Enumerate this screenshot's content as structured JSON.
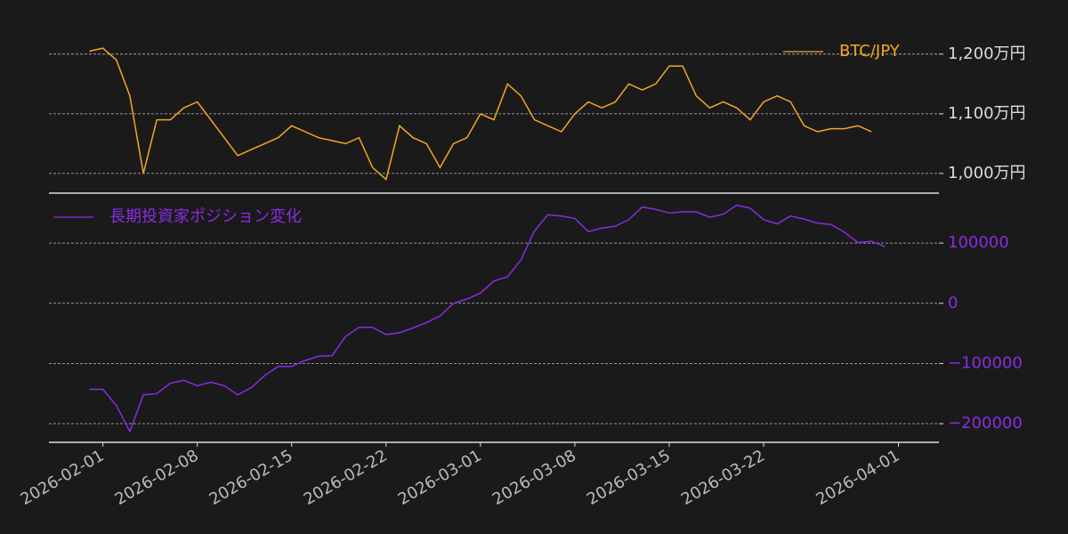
{
  "chart_data": [
    {
      "type": "line",
      "x": [
        "2026-01-31",
        "2026-02-01",
        "2026-02-02",
        "2026-02-03",
        "2026-02-04",
        "2026-02-05",
        "2026-02-06",
        "2026-02-07",
        "2026-02-08",
        "2026-02-09",
        "2026-02-10",
        "2026-02-11",
        "2026-02-12",
        "2026-02-13",
        "2026-02-14",
        "2026-02-15",
        "2026-02-16",
        "2026-02-17",
        "2026-02-18",
        "2026-02-19",
        "2026-02-20",
        "2026-02-21",
        "2026-02-22",
        "2026-02-23",
        "2026-02-24",
        "2026-02-25",
        "2026-02-26",
        "2026-02-27",
        "2026-02-28",
        "2026-03-01",
        "2026-03-02",
        "2026-03-03",
        "2026-03-04",
        "2026-03-05",
        "2026-03-06",
        "2026-03-07",
        "2026-03-08",
        "2026-03-09",
        "2026-03-10",
        "2026-03-11",
        "2026-03-12",
        "2026-03-13",
        "2026-03-14",
        "2026-03-15",
        "2026-03-16",
        "2026-03-17",
        "2026-03-18",
        "2026-03-19",
        "2026-03-20",
        "2026-03-21",
        "2026-03-22",
        "2026-03-23",
        "2026-03-24",
        "2026-03-25",
        "2026-03-26",
        "2026-03-27",
        "2026-03-28",
        "2026-03-29",
        "2026-03-30"
      ],
      "series": [
        {
          "name": "BTC/JPY",
          "color": "#f5a623",
          "values": [
            1205,
            1210,
            1190,
            1130,
            1000,
            1090,
            1090,
            1110,
            1120,
            1090,
            1060,
            1030,
            1040,
            1050,
            1060,
            1080,
            1070,
            1060,
            1055,
            1050,
            1060,
            1010,
            990,
            1080,
            1060,
            1050,
            1010,
            1050,
            1060,
            1100,
            1090,
            1150,
            1130,
            1090,
            1080,
            1070,
            1100,
            1120,
            1110,
            1120,
            1150,
            1140,
            1150,
            1180,
            1180,
            1130,
            1110,
            1120,
            1110,
            1090,
            1120,
            1130,
            1120,
            1080,
            1070,
            1075,
            1075,
            1080,
            1070
          ]
        }
      ],
      "xlim": [
        "2026-01-28",
        "2026-04-04"
      ],
      "ylim": [
        967,
        1246
      ],
      "yticks": [
        {
          "value": 1000,
          "label": "1,000万円"
        },
        {
          "value": 1100,
          "label": "1,100万円"
        },
        {
          "value": 1200,
          "label": "1,200万円"
        }
      ],
      "grid": true,
      "legend": "upper right",
      "tick_color": "#dddddd"
    },
    {
      "type": "line",
      "x": [
        "2026-01-31",
        "2026-02-01",
        "2026-02-02",
        "2026-02-03",
        "2026-02-04",
        "2026-02-05",
        "2026-02-06",
        "2026-02-07",
        "2026-02-08",
        "2026-02-09",
        "2026-02-10",
        "2026-02-11",
        "2026-02-12",
        "2026-02-13",
        "2026-02-14",
        "2026-02-15",
        "2026-02-16",
        "2026-02-17",
        "2026-02-18",
        "2026-02-19",
        "2026-02-20",
        "2026-02-21",
        "2026-02-22",
        "2026-02-23",
        "2026-02-24",
        "2026-02-25",
        "2026-02-26",
        "2026-02-27",
        "2026-02-28",
        "2026-03-01",
        "2026-03-02",
        "2026-03-03",
        "2026-03-04",
        "2026-03-05",
        "2026-03-06",
        "2026-03-07",
        "2026-03-08",
        "2026-03-09",
        "2026-03-10",
        "2026-03-11",
        "2026-03-12",
        "2026-03-13",
        "2026-03-14",
        "2026-03-15",
        "2026-03-16",
        "2026-03-17",
        "2026-03-18",
        "2026-03-19",
        "2026-03-20",
        "2026-03-21",
        "2026-03-22",
        "2026-03-23",
        "2026-03-24",
        "2026-03-25",
        "2026-03-26",
        "2026-03-27",
        "2026-03-28",
        "2026-03-29",
        "2026-03-30",
        "2026-03-31"
      ],
      "series": [
        {
          "name": "長期投資家ポジション変化",
          "color": "#8a2be2",
          "values": [
            -143000,
            -143000,
            -170000,
            -213000,
            -152000,
            -150000,
            -133000,
            -128000,
            -137000,
            -131000,
            -137000,
            -152000,
            -140000,
            -120000,
            -105000,
            -105000,
            -95000,
            -88000,
            -87000,
            -55000,
            -40000,
            -40000,
            -52000,
            -49000,
            -41000,
            -32000,
            -21000,
            0,
            7000,
            17000,
            37000,
            44000,
            72000,
            120000,
            147000,
            145000,
            141000,
            119000,
            125000,
            128000,
            139000,
            160000,
            156000,
            150000,
            152000,
            152000,
            143000,
            148000,
            163000,
            158000,
            139000,
            132000,
            145000,
            140000,
            133000,
            131000,
            118000,
            101000,
            103000,
            94000
          ]
        }
      ],
      "xlim": [
        "2026-01-28",
        "2026-04-04"
      ],
      "ylim": [
        -231000,
        183000
      ],
      "yticks": [
        {
          "value": -200000,
          "label": "−200000"
        },
        {
          "value": -100000,
          "label": "−100000"
        },
        0,
        100000
      ],
      "xticks": [
        "2026-02-01",
        "2026-02-08",
        "2026-02-15",
        "2026-02-22",
        "2026-03-01",
        "2026-03-08",
        "2026-03-15",
        "2026-03-22",
        "2026-04-01"
      ],
      "grid": true,
      "legend": "upper left",
      "tick_color": "#8a2be2"
    }
  ]
}
